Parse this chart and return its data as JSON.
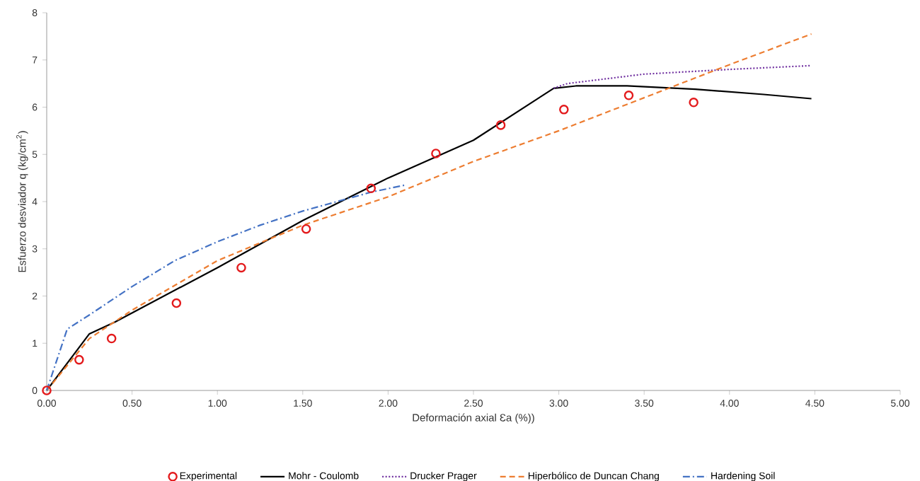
{
  "chart_data": {
    "type": "line",
    "xlabel": "Deformación axial Ɛa (%))",
    "ylabel": "Esfuerzo desviador q (kg/cm$^{2}$)",
    "xlim": [
      0,
      5
    ],
    "ylim": [
      0,
      8
    ],
    "xticks": [
      {
        "value": 0,
        "label": "0.00"
      },
      {
        "value": 0.5,
        "label": "0.50"
      },
      {
        "value": 1,
        "label": "1.00"
      },
      {
        "value": 1.5,
        "label": "1.50"
      },
      {
        "value": 2,
        "label": "2.00"
      },
      {
        "value": 2.5,
        "label": "2.50"
      },
      {
        "value": 3,
        "label": "3.00"
      },
      {
        "value": 3.5,
        "label": "3.50"
      },
      {
        "value": 4,
        "label": "4.00"
      },
      {
        "value": 4.5,
        "label": "4.50"
      },
      {
        "value": 5,
        "label": "5.00"
      }
    ],
    "yticks": [
      0,
      1,
      2,
      3,
      4,
      5,
      6,
      7,
      8
    ],
    "grid": false,
    "legend": "bottom",
    "series": [
      {
        "name": "Experimental",
        "type": "scatter",
        "marker": "circle",
        "color": "#e31a1c",
        "x": [
          0,
          0.19,
          0.38,
          0.76,
          1.14,
          1.52,
          1.9,
          2.28,
          2.66,
          3.03,
          3.41,
          3.79
        ],
        "values": [
          0,
          0.65,
          1.1,
          1.85,
          2.6,
          3.42,
          4.28,
          5.02,
          5.62,
          5.95,
          6.25,
          6.1
        ]
      },
      {
        "name": "Mohr - Coulomb",
        "type": "line",
        "line_style": "solid",
        "color": "#000000",
        "x": [
          0,
          0.25,
          0.4,
          1.0,
          1.5,
          2.0,
          2.5,
          2.97,
          3.1,
          3.4,
          3.8,
          4.2,
          4.48
        ],
        "values": [
          0,
          1.2,
          1.45,
          2.6,
          3.6,
          4.5,
          5.3,
          6.4,
          6.45,
          6.45,
          6.38,
          6.27,
          6.18
        ]
      },
      {
        "name": "Drucker Prager",
        "type": "line",
        "line_style": "dotted",
        "color": "#7030a0",
        "x": [
          2.97,
          3.05,
          3.5,
          4.0,
          4.48
        ],
        "values": [
          6.4,
          6.5,
          6.7,
          6.8,
          6.88
        ]
      },
      {
        "name": "Hiperbólico de Duncan Chang",
        "type": "line",
        "line_style": "dashed",
        "color": "#ed7d31",
        "x": [
          0,
          0.25,
          0.5,
          1.0,
          1.5,
          2.0,
          2.5,
          3.0,
          3.5,
          4.0,
          4.48
        ],
        "values": [
          0,
          1.1,
          1.7,
          2.75,
          3.5,
          4.1,
          4.85,
          5.5,
          6.2,
          6.9,
          7.55
        ]
      },
      {
        "name": "Hardening Soil",
        "type": "line",
        "line_style": "dashdot",
        "color": "#4472c4",
        "x": [
          0,
          0.12,
          0.25,
          0.5,
          0.75,
          1.0,
          1.25,
          1.5,
          1.75,
          1.9,
          2.1
        ],
        "values": [
          0,
          1.3,
          1.6,
          2.2,
          2.75,
          3.15,
          3.5,
          3.8,
          4.05,
          4.2,
          4.35
        ]
      }
    ]
  }
}
